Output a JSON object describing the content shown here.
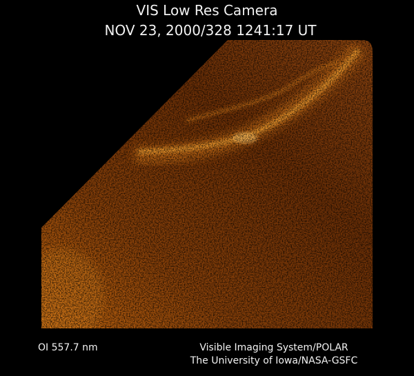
{
  "header": {
    "title": "VIS Low Res Camera",
    "timestamp": "NOV 23, 2000/328 1241:17 UT"
  },
  "footer": {
    "wavelength": "OI 557.7 nm",
    "credit_lines": [
      "Visible Imaging System/POLAR",
      "The University of Iowa/NASA-GSFC"
    ]
  }
}
